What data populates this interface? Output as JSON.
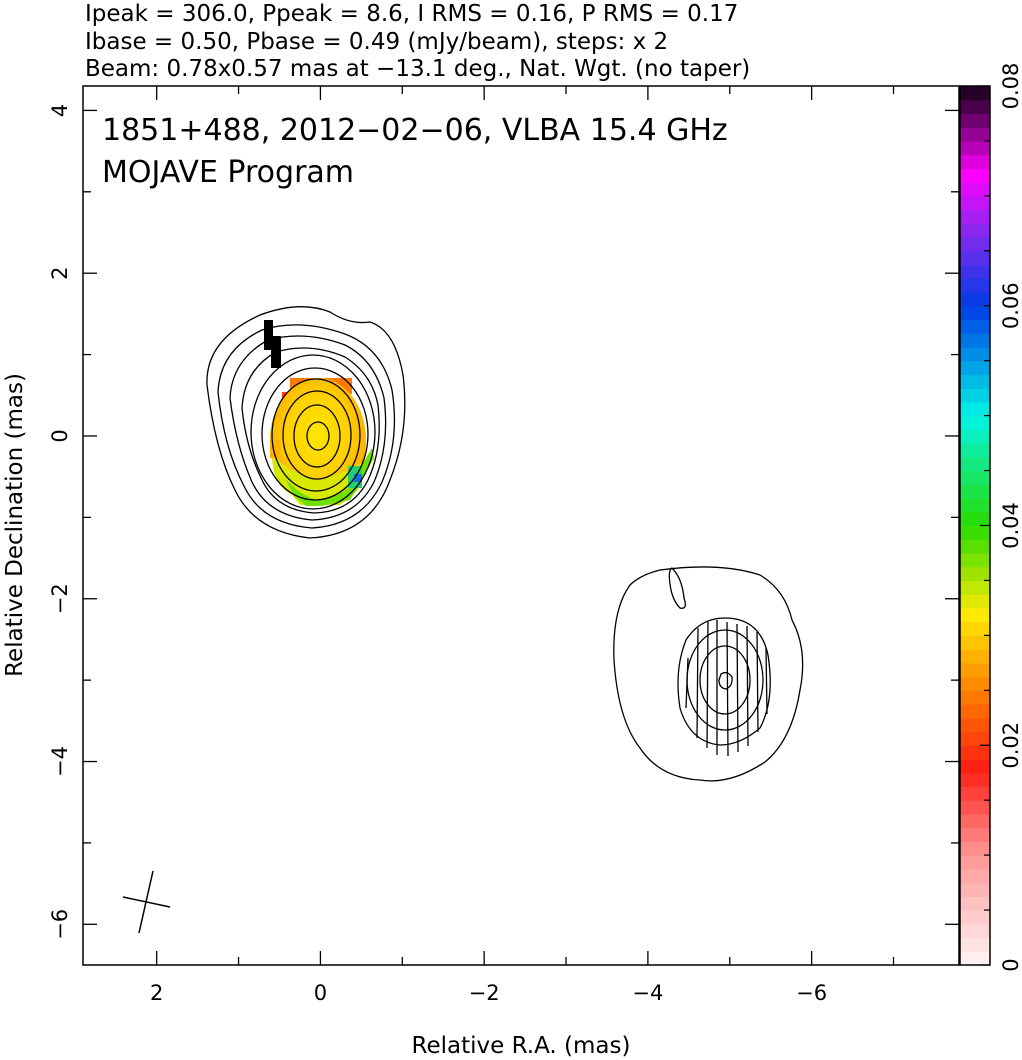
{
  "header": {
    "line1": "Ipeak = 306.0, Ppeak = 8.6, I RMS = 0.16, P RMS = 0.17",
    "line2": "Ibase = 0.50, Pbase = 0.49 (mJy/beam), steps: x 2",
    "line3": "Beam: 0.78x0.57 mas at −13.1 deg., Nat. Wgt. (no taper)"
  },
  "chart_data": {
    "type": "heatmap",
    "title": "1851+488, 2012−02−06, VLBA 15.4 GHz",
    "subtitle": "MOJAVE Program",
    "xlabel": "Relative R.A. (mas)",
    "ylabel": "Relative Declination (mas)",
    "xlim": [
      2.9,
      -7.8
    ],
    "ylim": [
      -6.5,
      4.3
    ],
    "x_axis_reversed": true,
    "x_ticks": [
      2,
      0,
      -2,
      -4,
      -6
    ],
    "x_tick_labels": [
      "2",
      "0",
      "−2",
      "−4",
      "−6"
    ],
    "y_ticks": [
      4,
      2,
      0,
      -2,
      -4,
      -6
    ],
    "y_tick_labels": [
      "4",
      "2",
      "0",
      "−2",
      "−4",
      "−6"
    ],
    "grid": false,
    "contours": {
      "base_mJy_per_beam": 0.5,
      "step_factor": 2,
      "core": {
        "ra": 0.0,
        "dec": 0.0,
        "peak_mJy_per_beam": 306.0
      },
      "jet_component": {
        "ra": -5.0,
        "dec": -3.0
      }
    },
    "polarization_overlay": {
      "quantity": "fractional polarization",
      "colorbar_range": [
        0,
        0.08
      ],
      "colorbar_ticks": [
        0,
        0.02,
        0.04,
        0.06,
        0.08
      ],
      "colorbar_tick_labels": [
        "0",
        "0.02",
        "0.04",
        "0.06",
        "0.08"
      ],
      "core_typical_value": 0.025,
      "edge_value_south": 0.04,
      "edge_value_west_pixel": 0.06
    },
    "beam": {
      "major_mas": 0.78,
      "minor_mas": 0.57,
      "pa_deg": -13.1,
      "position_ra": 2.0,
      "position_dec": -5.8
    }
  }
}
